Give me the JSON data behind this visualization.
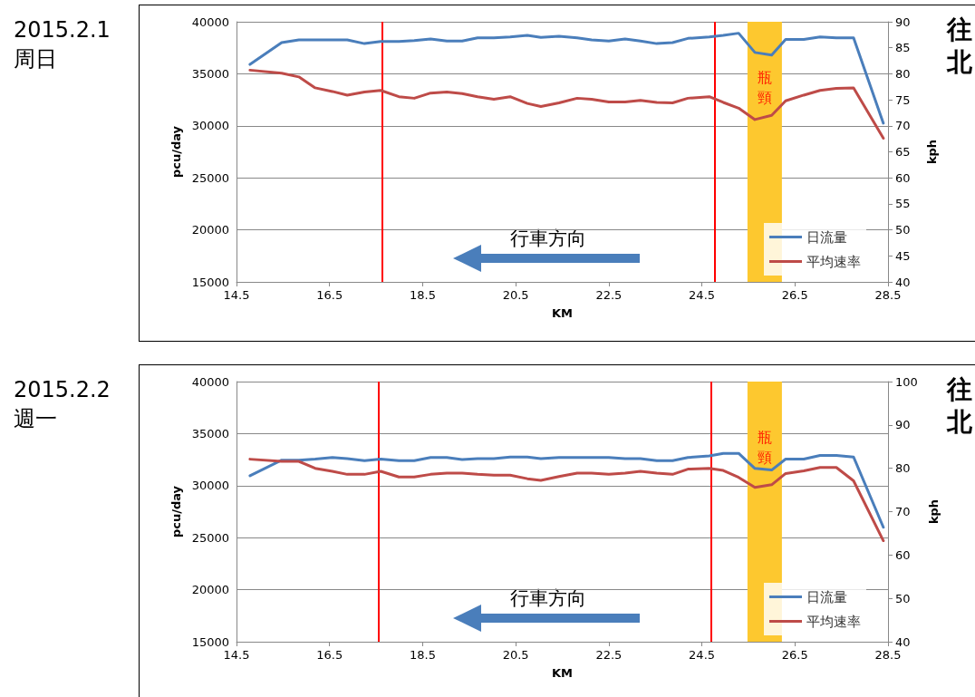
{
  "chart_data": [
    {
      "type": "line",
      "title": "2015.2.1\n周日",
      "xlabel": "KM",
      "ylabel": "pcu/day",
      "y2label": "kph",
      "x": [
        14.79,
        15.47,
        15.84,
        16.19,
        16.56,
        16.88,
        17.25,
        17.6,
        17.99,
        18.32,
        18.67,
        19.02,
        19.35,
        19.68,
        20.03,
        20.38,
        20.75,
        21.04,
        21.43,
        21.82,
        22.13,
        22.5,
        22.85,
        23.18,
        23.53,
        23.87,
        24.2,
        24.66,
        24.96,
        25.29,
        25.64,
        26.0,
        26.3,
        26.69,
        27.04,
        27.39,
        27.76,
        28.4
      ],
      "series": [
        {
          "name": "日流量",
          "color": "#4a7ebb",
          "values": [
            35900,
            38000,
            38250,
            38250,
            38250,
            38250,
            37900,
            38100,
            38100,
            38200,
            38350,
            38150,
            38150,
            38450,
            38450,
            38550,
            38700,
            38500,
            38600,
            38450,
            38250,
            38150,
            38350,
            38150,
            37900,
            38000,
            38400,
            38550,
            38700,
            38900,
            37050,
            36800,
            38300,
            38300,
            38550,
            38450,
            38450,
            30250
          ]
        },
        {
          "name": "平均速率",
          "color": "#be4b48",
          "axis": "y2",
          "values": [
            80.7,
            80.1,
            79.4,
            77.3,
            76.6,
            75.9,
            76.5,
            76.8,
            75.6,
            75.3,
            76.3,
            76.5,
            76.2,
            75.6,
            75.1,
            75.6,
            74.3,
            73.7,
            74.4,
            75.3,
            75.1,
            74.6,
            74.6,
            74.9,
            74.5,
            74.4,
            75.3,
            75.6,
            74.5,
            73.4,
            71.2,
            72.0,
            74.8,
            75.9,
            76.8,
            77.2,
            77.3,
            67.6
          ]
        }
      ],
      "xlim": [
        14.5,
        28.5
      ],
      "xticks": [
        14.5,
        16.5,
        18.5,
        20.5,
        22.5,
        24.5,
        26.5,
        28.5
      ],
      "ylim": [
        15000,
        40000
      ],
      "yticks": [
        15000,
        20000,
        25000,
        30000,
        35000,
        40000
      ],
      "y2lim": [
        40,
        90
      ],
      "y2ticks": [
        40,
        45,
        50,
        55,
        60,
        65,
        70,
        75,
        80,
        85,
        90
      ],
      "ref_lines": [
        {
          "axis": "x",
          "value": 17.63,
          "color": "#ff0000"
        },
        {
          "axis": "x",
          "value": 24.78,
          "color": "#ff0000"
        }
      ],
      "bands": [
        {
          "axis": "x",
          "from": 25.48,
          "to": 26.22,
          "label": "瓶頸",
          "color": "#fdc82f"
        }
      ],
      "annotations": [
        "行車方向",
        "往北"
      ],
      "grid": "y",
      "legend": "bottom right",
      "marker": "none",
      "line_style": "solid"
    },
    {
      "type": "line",
      "title": "2015.2.2\n週一",
      "xlabel": "KM",
      "ylabel": "pcu/day",
      "y2label": "kph",
      "x": [
        14.79,
        15.47,
        15.84,
        16.19,
        16.56,
        16.88,
        17.25,
        17.6,
        17.99,
        18.32,
        18.67,
        19.02,
        19.35,
        19.68,
        20.03,
        20.38,
        20.75,
        21.04,
        21.43,
        21.82,
        22.13,
        22.5,
        22.85,
        23.18,
        23.53,
        23.87,
        24.2,
        24.66,
        24.96,
        25.29,
        25.64,
        26.0,
        26.3,
        26.69,
        27.04,
        27.39,
        27.76,
        28.4
      ],
      "series": [
        {
          "name": "日流量",
          "color": "#4a7ebb",
          "values": [
            30950,
            32450,
            32450,
            32550,
            32700,
            32600,
            32400,
            32550,
            32400,
            32400,
            32700,
            32700,
            32500,
            32600,
            32600,
            32750,
            32750,
            32600,
            32700,
            32700,
            32700,
            32700,
            32600,
            32600,
            32400,
            32400,
            32700,
            32850,
            33100,
            33100,
            31650,
            31500,
            32550,
            32550,
            32900,
            32900,
            32750,
            26000
          ]
        },
        {
          "name": "平均速率",
          "color": "#be4b48",
          "axis": "y2",
          "values": [
            82.1,
            81.6,
            81.6,
            80.0,
            79.3,
            78.6,
            78.6,
            79.3,
            78.0,
            78.0,
            78.6,
            78.9,
            78.9,
            78.6,
            78.4,
            78.4,
            77.6,
            77.2,
            78.1,
            78.9,
            78.9,
            78.6,
            78.9,
            79.3,
            78.9,
            78.6,
            79.8,
            80.0,
            79.5,
            77.9,
            75.6,
            76.2,
            78.8,
            79.4,
            80.2,
            80.2,
            77.1,
            63.3
          ]
        }
      ],
      "xlim": [
        14.5,
        28.5
      ],
      "xticks": [
        14.5,
        16.5,
        18.5,
        20.5,
        22.5,
        24.5,
        26.5,
        28.5
      ],
      "ylim": [
        15000,
        40000
      ],
      "yticks": [
        15000,
        20000,
        25000,
        30000,
        35000,
        40000
      ],
      "y2lim": [
        40,
        100
      ],
      "y2ticks": [
        40,
        50,
        60,
        70,
        80,
        90,
        100
      ],
      "ref_lines": [
        {
          "axis": "x",
          "value": 17.56,
          "color": "#ff0000"
        },
        {
          "axis": "x",
          "value": 24.7,
          "color": "#ff0000"
        }
      ],
      "bands": [
        {
          "axis": "x",
          "from": 25.48,
          "to": 26.22,
          "label": "瓶頸",
          "color": "#fdc82f"
        }
      ],
      "annotations": [
        "行車方向",
        "往北"
      ],
      "grid": "y",
      "legend": "bottom right",
      "marker": "none",
      "line_style": "solid"
    }
  ]
}
